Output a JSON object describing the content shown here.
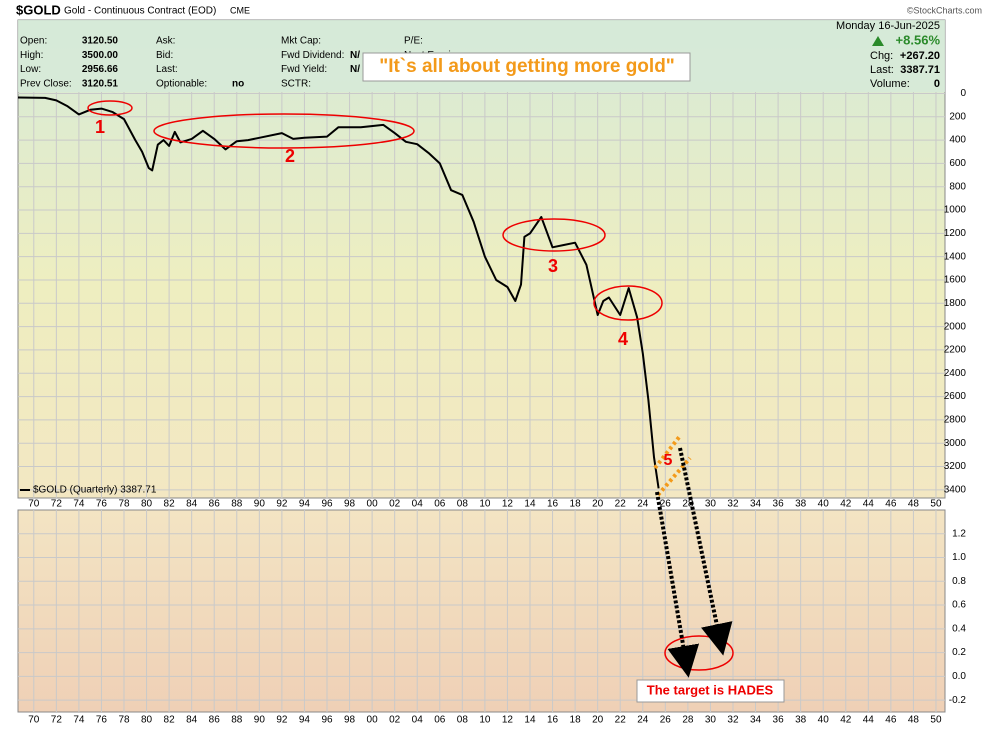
{
  "header": {
    "symbol": "$GOLD",
    "description": "Gold - Continuous Contract (EOD)",
    "exchange": "CME",
    "copyright": "©StockCharts.com",
    "fields": [
      [
        "Open:",
        "3120.50"
      ],
      [
        "High:",
        "3500.00"
      ],
      [
        "Low:",
        "2956.66"
      ],
      [
        "Prev Close:",
        "3120.51"
      ],
      [
        "Ask:",
        ""
      ],
      [
        "Bid:",
        ""
      ],
      [
        "Last:",
        ""
      ],
      [
        "Optionable:",
        "no"
      ],
      [
        "Mkt Cap:",
        ""
      ],
      [
        "Fwd Dividend:",
        "N/"
      ],
      [
        "Fwd Yield:",
        "N/"
      ],
      [
        "SCTR:",
        ""
      ],
      [
        "P/E:",
        ""
      ],
      [
        "Next Earnings:",
        ""
      ]
    ],
    "date": "Monday  16-Jun-2025",
    "change_pct": "+8.56%",
    "chg_label": "Chg:",
    "chg": "+267.20",
    "last_label": "Last:",
    "last": "3387.71",
    "volume_label": "Volume:",
    "volume": "0"
  },
  "chart_data": {
    "type": "line",
    "color": "#000000",
    "y_inverted": true,
    "grid": true,
    "legend_label": "$GOLD (Quarterly) 3387.71",
    "x": [
      1968.6,
      1971,
      1972,
      1973,
      1974,
      1975,
      1976,
      1977,
      1978,
      1979,
      1979.6,
      1980.2,
      1980.5,
      1981,
      1981.5,
      1982,
      1982.5,
      1983,
      1984,
      1985,
      1986,
      1987,
      1988,
      1989,
      1990,
      1992,
      1993,
      1994,
      1996,
      1997,
      1999,
      2001,
      2002,
      2003,
      2004,
      2005,
      2006,
      2007,
      2008,
      2009,
      2010,
      2011,
      2012,
      2012.7,
      2013.2,
      2013.5,
      2014,
      2015,
      2016,
      2017,
      2018,
      2019,
      2020,
      2020.5,
      2021,
      2022,
      2022.75,
      2023.5,
      2024,
      2024.5,
      2025,
      2025.4
    ],
    "values": [
      35,
      38,
      60,
      110,
      180,
      140,
      130,
      160,
      220,
      400,
      500,
      640,
      660,
      440,
      400,
      450,
      330,
      420,
      390,
      320,
      390,
      480,
      410,
      400,
      380,
      340,
      390,
      380,
      370,
      290,
      290,
      270,
      340,
      415,
      435,
      510,
      600,
      830,
      870,
      1100,
      1400,
      1600,
      1660,
      1780,
      1640,
      1230,
      1200,
      1060,
      1320,
      1300,
      1280,
      1470,
      1900,
      1780,
      1750,
      1900,
      1670,
      1920,
      2230,
      2630,
      3120,
      3387.71
    ],
    "xlim": [
      1968.6,
      2050.8
    ],
    "xticks": [
      {
        "value": 1970,
        "label": "70"
      },
      {
        "value": 1972,
        "label": "72"
      },
      {
        "value": 1974,
        "label": "74"
      },
      {
        "value": 1976,
        "label": "76"
      },
      {
        "value": 1978,
        "label": "78"
      },
      {
        "value": 1980,
        "label": "80"
      },
      {
        "value": 1982,
        "label": "82"
      },
      {
        "value": 1984,
        "label": "84"
      },
      {
        "value": 1986,
        "label": "86"
      },
      {
        "value": 1988,
        "label": "88"
      },
      {
        "value": 1990,
        "label": "90"
      },
      {
        "value": 1992,
        "label": "92"
      },
      {
        "value": 1994,
        "label": "94"
      },
      {
        "value": 1996,
        "label": "96"
      },
      {
        "value": 1998,
        "label": "98"
      },
      {
        "value": 2000,
        "label": "00"
      },
      {
        "value": 2002,
        "label": "02"
      },
      {
        "value": 2004,
        "label": "04"
      },
      {
        "value": 2006,
        "label": "06"
      },
      {
        "value": 2008,
        "label": "08"
      },
      {
        "value": 2010,
        "label": "10"
      },
      {
        "value": 2012,
        "label": "12"
      },
      {
        "value": 2014,
        "label": "14"
      },
      {
        "value": 2016,
        "label": "16"
      },
      {
        "value": 2018,
        "label": "18"
      },
      {
        "value": 2020,
        "label": "20"
      },
      {
        "value": 2022,
        "label": "22"
      },
      {
        "value": 2024,
        "label": "24"
      },
      {
        "value": 2026,
        "label": "26"
      },
      {
        "value": 2028,
        "label": "28"
      },
      {
        "value": 2030,
        "label": "30"
      },
      {
        "value": 2032,
        "label": "32"
      },
      {
        "value": 2034,
        "label": "34"
      },
      {
        "value": 2036,
        "label": "36"
      },
      {
        "value": 2038,
        "label": "38"
      },
      {
        "value": 2040,
        "label": "40"
      },
      {
        "value": 2042,
        "label": "42"
      },
      {
        "value": 2044,
        "label": "44"
      },
      {
        "value": 2046,
        "label": "46"
      },
      {
        "value": 2048,
        "label": "48"
      },
      {
        "value": 2050,
        "label": "50"
      }
    ],
    "ylim": [
      -630,
      3470
    ],
    "yticks": [
      0,
      200,
      400,
      600,
      800,
      1000,
      1200,
      1400,
      1600,
      1800,
      2000,
      2200,
      2400,
      2600,
      2800,
      3000,
      3200,
      3400
    ],
    "lower_panel": {
      "ylim": [
        -0.3,
        1.4
      ],
      "yticks": [
        -0.2,
        {
          "value": 0,
          "label": "0.0"
        },
        0.2,
        0.4,
        0.6,
        0.8,
        {
          "value": 1,
          "label": "1.0"
        },
        1.2
      ]
    },
    "annotations": [
      "1",
      "2",
      "3",
      "4",
      "5",
      "\"It`s all about getting more gold\"",
      "The target is HADES"
    ]
  }
}
